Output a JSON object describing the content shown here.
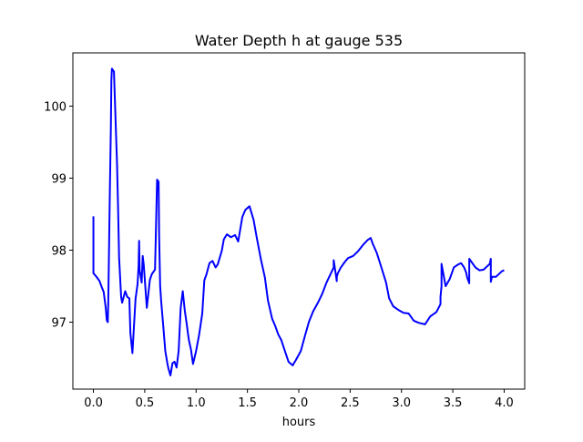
{
  "chart_data": {
    "type": "line",
    "title": "Water Depth h at gauge 535",
    "xlabel": "hours",
    "ylabel": "",
    "xlim": [
      -0.2,
      4.2
    ],
    "ylim": [
      96.07,
      100.74
    ],
    "grid": false,
    "x_ticks": [
      0.0,
      0.5,
      1.0,
      1.5,
      2.0,
      2.5,
      3.0,
      3.5,
      4.0
    ],
    "x_tick_labels": [
      "0.0",
      "0.5",
      "1.0",
      "1.5",
      "2.0",
      "2.5",
      "3.0",
      "3.5",
      "4.0"
    ],
    "y_ticks": [
      97,
      98,
      99,
      100
    ],
    "y_tick_labels": [
      "97",
      "98",
      "99",
      "100"
    ],
    "series": [
      {
        "color": "#0000ff",
        "x": [
          0.0,
          0.0,
          0.0,
          0.0,
          0.03,
          0.06,
          0.08,
          0.1,
          0.12,
          0.13,
          0.14,
          0.145,
          0.16,
          0.17,
          0.175,
          0.18,
          0.2,
          0.23,
          0.24,
          0.25,
          0.27,
          0.28,
          0.3,
          0.31,
          0.33,
          0.35,
          0.36,
          0.38,
          0.41,
          0.43,
          0.44,
          0.445,
          0.45,
          0.47,
          0.48,
          0.49,
          0.5,
          0.52,
          0.55,
          0.57,
          0.6,
          0.62,
          0.635,
          0.64,
          0.65,
          0.66,
          0.68,
          0.7,
          0.72,
          0.73,
          0.75,
          0.77,
          0.79,
          0.81,
          0.83,
          0.85,
          0.87,
          0.89,
          0.91,
          0.92,
          0.93,
          0.95,
          0.97,
          1.0,
          1.03,
          1.06,
          1.08,
          1.1,
          1.13,
          1.16,
          1.19,
          1.21,
          1.25,
          1.27,
          1.3,
          1.34,
          1.38,
          1.41,
          1.45,
          1.48,
          1.52,
          1.56,
          1.59,
          1.63,
          1.67,
          1.7,
          1.74,
          1.77,
          1.8,
          1.83,
          1.86,
          1.9,
          1.94,
          1.97,
          2.02,
          2.06,
          2.1,
          2.14,
          2.19,
          2.23,
          2.27,
          2.32,
          2.34,
          2.34,
          2.37,
          2.37,
          2.38,
          2.41,
          2.45,
          2.48,
          2.53,
          2.58,
          2.63,
          2.67,
          2.7,
          2.72,
          2.76,
          2.8,
          2.85,
          2.88,
          2.92,
          2.97,
          3.02,
          3.07,
          3.12,
          3.17,
          3.23,
          3.28,
          3.34,
          3.38,
          3.38,
          3.39,
          3.39,
          3.43,
          3.47,
          3.51,
          3.55,
          3.58,
          3.61,
          3.63,
          3.64,
          3.66,
          3.66,
          3.68,
          3.72,
          3.76,
          3.8,
          3.83,
          3.86,
          3.87,
          3.87,
          3.88,
          3.88,
          3.92,
          3.95,
          3.98,
          4.0
        ],
        "y": [
          98.47,
          97.97,
          97.89,
          97.68,
          97.63,
          97.57,
          97.49,
          97.42,
          97.2,
          97.03,
          97.0,
          97.3,
          98.8,
          99.7,
          100.35,
          100.52,
          100.48,
          99.2,
          98.6,
          97.9,
          97.35,
          97.27,
          97.38,
          97.43,
          97.35,
          97.33,
          96.85,
          96.57,
          97.32,
          97.53,
          97.78,
          98.13,
          97.72,
          97.55,
          97.92,
          97.8,
          97.6,
          97.2,
          97.59,
          97.67,
          97.73,
          98.98,
          98.95,
          98.2,
          97.5,
          97.29,
          96.95,
          96.6,
          96.43,
          96.36,
          96.26,
          96.43,
          96.45,
          96.37,
          96.6,
          97.2,
          97.43,
          97.16,
          96.96,
          96.85,
          96.75,
          96.62,
          96.42,
          96.6,
          96.83,
          97.12,
          97.58,
          97.66,
          97.82,
          97.85,
          97.76,
          97.8,
          97.99,
          98.15,
          98.22,
          98.18,
          98.21,
          98.12,
          98.46,
          98.56,
          98.61,
          98.42,
          98.18,
          97.88,
          97.62,
          97.3,
          97.05,
          96.95,
          96.83,
          96.75,
          96.62,
          96.45,
          96.4,
          96.47,
          96.6,
          96.81,
          97.01,
          97.15,
          97.28,
          97.4,
          97.55,
          97.7,
          97.76,
          97.86,
          97.57,
          97.63,
          97.68,
          97.76,
          97.84,
          97.89,
          97.92,
          97.99,
          98.08,
          98.14,
          98.17,
          98.09,
          97.96,
          97.78,
          97.55,
          97.33,
          97.22,
          97.17,
          97.13,
          97.12,
          97.02,
          96.99,
          96.97,
          97.08,
          97.14,
          97.25,
          97.35,
          97.5,
          97.81,
          97.5,
          97.6,
          97.76,
          97.8,
          97.82,
          97.76,
          97.69,
          97.62,
          97.54,
          97.88,
          97.84,
          97.76,
          97.72,
          97.73,
          97.77,
          97.81,
          97.88,
          97.56,
          97.62,
          97.63,
          97.63,
          97.67,
          97.71,
          97.72
        ]
      }
    ]
  }
}
